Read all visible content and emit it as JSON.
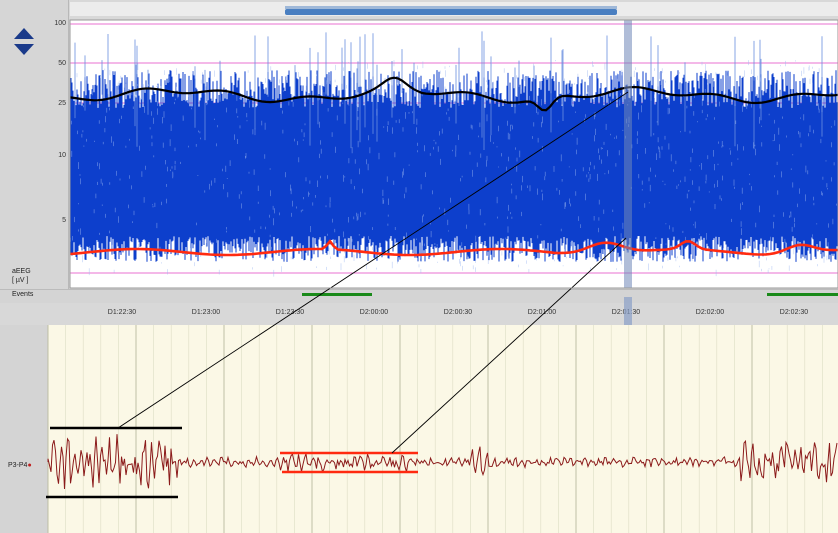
{
  "aeeg": {
    "y_ticks": [
      "100",
      "50",
      "25",
      "10",
      "5"
    ],
    "label": "aEEG",
    "unit": "[ µV ]"
  },
  "events": {
    "label": "Events"
  },
  "time_axis": {
    "labels": [
      "D1:22:30",
      "D1:23:00",
      "D1:23:30",
      "D2:00:00",
      "D2:00:30",
      "D2:01:00",
      "D2:01:30",
      "D2:02:00",
      "D2:02:30"
    ]
  },
  "eeg": {
    "channel_label": "P3-P4"
  },
  "colors": {
    "aeeg_fill": "#0d3fcc",
    "upper_margin": "#000000",
    "lower_margin": "#ff2a10",
    "eeg_trace": "#8b1a1a",
    "event_marker": "#1a8a1a",
    "grid_pink": "#e040c0"
  }
}
